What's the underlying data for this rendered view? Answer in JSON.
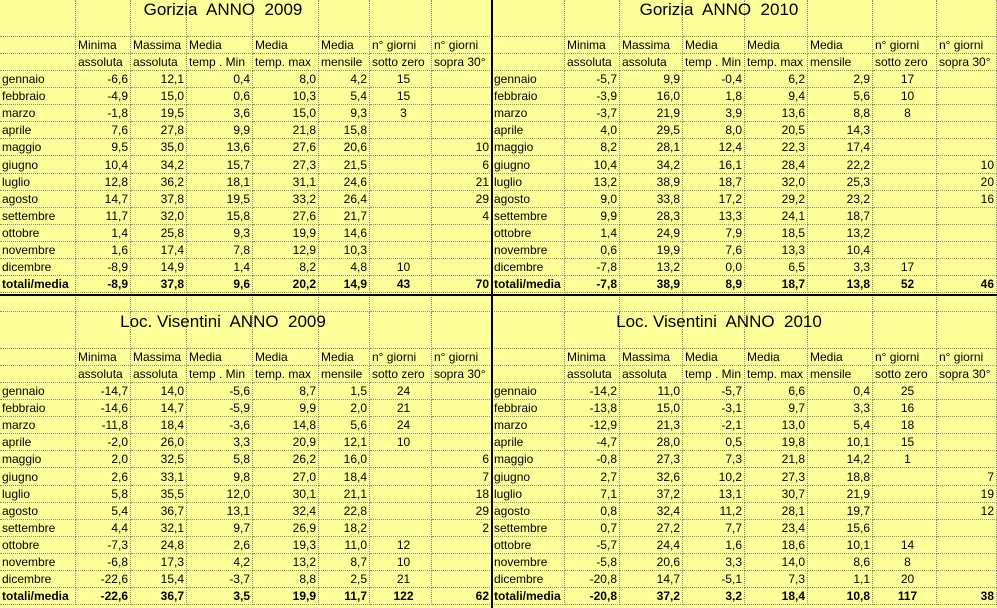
{
  "tables": [
    {
      "title": "Gorizia  ANNO  2009",
      "header_top": [
        "Minima",
        "Massima",
        "Media",
        "Media",
        "Media",
        "n° giorni",
        "n° giorni"
      ],
      "header_bottom": [
        "assoluta",
        "assoluta",
        "temp . Min",
        "temp. max",
        "mensile",
        "sotto zero",
        "sopra 30°"
      ],
      "rows": [
        [
          "gennaio",
          "-6,6",
          "12,1",
          "0,4",
          "8,0",
          "4,2",
          "15",
          null
        ],
        [
          "febbraio",
          "-4,9",
          "15,0",
          "0,6",
          "10,3",
          "5,4",
          "15",
          null
        ],
        [
          "marzo",
          "-1,8",
          "19,5",
          "3,6",
          "15,0",
          "9,3",
          "3",
          null
        ],
        [
          "aprile",
          "7,6",
          "27,8",
          "9,9",
          "21,8",
          "15,8",
          null,
          null
        ],
        [
          "maggio",
          "9,5",
          "35,0",
          "13,6",
          "27,6",
          "20,6",
          null,
          "10"
        ],
        [
          "giugno",
          "10,4",
          "34,2",
          "15,7",
          "27,3",
          "21,5",
          null,
          "6"
        ],
        [
          "luglio",
          "12,8",
          "36,2",
          "18,1",
          "31,1",
          "24,6",
          null,
          "21"
        ],
        [
          "agosto",
          "14,7",
          "37,8",
          "19,5",
          "33,2",
          "26,4",
          null,
          "29"
        ],
        [
          "settembre",
          "11,7",
          "32,0",
          "15,8",
          "27,6",
          "21,7",
          null,
          "4"
        ],
        [
          "ottobre",
          "1,4",
          "25,8",
          "9,3",
          "19,9",
          "14,6",
          null,
          null
        ],
        [
          "novembre",
          "1,6",
          "17,4",
          "7,8",
          "12,9",
          "10,3",
          null,
          null
        ],
        [
          "dicembre",
          "-8,9",
          "14,9",
          "1,4",
          "8,2",
          "4,8",
          "10",
          null
        ],
        [
          "totali/media",
          "-8,9",
          "37,8",
          "9,6",
          "20,2",
          "14,9",
          "43",
          "70"
        ]
      ]
    },
    {
      "title": "Gorizia  ANNO  2010",
      "header_top": [
        "Minima",
        "Massima",
        "Media",
        "Media",
        "Media",
        "n° giorni",
        "n° giorni"
      ],
      "header_bottom": [
        "assoluta",
        "assoluta",
        "temp . Min",
        "temp. max",
        "mensile",
        "sotto zero",
        "sopra 30°"
      ],
      "rows": [
        [
          "gennaio",
          "-5,7",
          "9,9",
          "-0,4",
          "6,2",
          "2,9",
          "17",
          null
        ],
        [
          "febbraio",
          "-3,9",
          "16,0",
          "1,8",
          "9,4",
          "5,6",
          "10",
          null
        ],
        [
          "marzo",
          "-3,7",
          "21,9",
          "3,9",
          "13,6",
          "8,8",
          "8",
          null
        ],
        [
          "aprile",
          "4,0",
          "29,5",
          "8,0",
          "20,5",
          "14,3",
          null,
          null
        ],
        [
          "maggio",
          "8,2",
          "28,1",
          "12,4",
          "22,3",
          "17,4",
          null,
          null
        ],
        [
          "giugno",
          "10,4",
          "34,2",
          "16,1",
          "28,4",
          "22,2",
          null,
          "10"
        ],
        [
          "luglio",
          "13,2",
          "38,9",
          "18,7",
          "32,0",
          "25,3",
          null,
          "20"
        ],
        [
          "agosto",
          "9,0",
          "33,8",
          "17,2",
          "29,2",
          "23,2",
          null,
          "16"
        ],
        [
          "settembre",
          "9,9",
          "28,3",
          "13,3",
          "24,1",
          "18,7",
          null,
          null
        ],
        [
          "ottobre",
          "1,4",
          "24,9",
          "7,9",
          "18,5",
          "13,2",
          null,
          null
        ],
        [
          "novembre",
          "0,6",
          "19,9",
          "7,6",
          "13,3",
          "10,4",
          null,
          null
        ],
        [
          "dicembre",
          "-7,8",
          "13,2",
          "0,0",
          "6,5",
          "3,3",
          "17",
          null
        ],
        [
          "totali/media",
          "-7,8",
          "38,9",
          "8,9",
          "18,7",
          "13,8",
          "52",
          "46"
        ]
      ]
    },
    {
      "title": "Loc. Visentini  ANNO  2009",
      "header_top": [
        "Minima",
        "Massima",
        "Media",
        "Media",
        "Media",
        "n° giorni",
        "n° giorni"
      ],
      "header_bottom": [
        "assoluta",
        "assoluta",
        "temp . Min",
        "temp. max",
        "mensile",
        "sotto zero",
        "sopra 30°"
      ],
      "rows": [
        [
          "gennaio",
          "-14,7",
          "14,0",
          "-5,6",
          "8,7",
          "1,5",
          "24",
          null
        ],
        [
          "febbraio",
          "-14,6",
          "14,7",
          "-5,9",
          "9,9",
          "2,0",
          "21",
          null
        ],
        [
          "marzo",
          "-11,8",
          "18,4",
          "-3,6",
          "14,8",
          "5,6",
          "24",
          null
        ],
        [
          "aprile",
          "-2,0",
          "26,0",
          "3,3",
          "20,9",
          "12,1",
          "10",
          null
        ],
        [
          "maggio",
          "2,0",
          "32,5",
          "5,8",
          "26,2",
          "16,0",
          null,
          "6"
        ],
        [
          "giugno",
          "2,6",
          "33,1",
          "9,8",
          "27,0",
          "18,4",
          null,
          "7"
        ],
        [
          "luglio",
          "5,8",
          "35,5",
          "12,0",
          "30,1",
          "21,1",
          null,
          "18"
        ],
        [
          "agosto",
          "5,4",
          "36,7",
          "13,1",
          "32,4",
          "22,8",
          null,
          "29"
        ],
        [
          "settembre",
          "4,4",
          "32,1",
          "9,7",
          "26,9",
          "18,2",
          null,
          "2"
        ],
        [
          "ottobre",
          "-7,3",
          "24,8",
          "2,6",
          "19,3",
          "11,0",
          "12",
          null
        ],
        [
          "novembre",
          "-6,8",
          "17,3",
          "4,2",
          "13,2",
          "8,7",
          "10",
          null
        ],
        [
          "dicembre",
          "-22,6",
          "15,4",
          "-3,7",
          "8,8",
          "2,5",
          "21",
          null
        ],
        [
          "totali/media",
          "-22,6",
          "36,7",
          "3,5",
          "19,9",
          "11,7",
          "122",
          "62"
        ]
      ]
    },
    {
      "title": "Loc. Visentini  ANNO  2010",
      "header_top": [
        "Minima",
        "Massima",
        "Media",
        "Media",
        "Media",
        "n° giorni",
        "n° giorni"
      ],
      "header_bottom": [
        "assoluta",
        "assoluta",
        "temp . Min",
        "temp. max",
        "mensile",
        "sotto zero",
        "sopra 30°"
      ],
      "rows": [
        [
          "gennaio",
          "-14,2",
          "11,0",
          "-5,7",
          "6,6",
          "0,4",
          "25",
          null
        ],
        [
          "febbraio",
          "-13,8",
          "15,0",
          "-3,1",
          "9,7",
          "3,3",
          "16",
          null
        ],
        [
          "marzo",
          "-12,9",
          "21,3",
          "-2,1",
          "13,0",
          "5,4",
          "18",
          null
        ],
        [
          "aprile",
          "-4,7",
          "28,0",
          "0,5",
          "19,8",
          "10,1",
          "15",
          null
        ],
        [
          "maggio",
          "-0,8",
          "27,3",
          "7,3",
          "21,8",
          "14,2",
          "1",
          null
        ],
        [
          "giugno",
          "2,7",
          "32,6",
          "10,2",
          "27,3",
          "18,8",
          null,
          "7"
        ],
        [
          "luglio",
          "7,1",
          "37,2",
          "13,1",
          "30,7",
          "21,9",
          null,
          "19"
        ],
        [
          "agosto",
          "0,8",
          "32,4",
          "11,2",
          "28,1",
          "19,7",
          null,
          "12"
        ],
        [
          "settembre",
          "0,7",
          "27,2",
          "7,7",
          "23,4",
          "15,6",
          null,
          null
        ],
        [
          "ottobre",
          "-5,7",
          "24,4",
          "1,6",
          "18,6",
          "10,1",
          "14",
          null
        ],
        [
          "novembre",
          "-5,8",
          "20,6",
          "3,3",
          "14,0",
          "8,6",
          "8",
          null
        ],
        [
          "dicembre",
          "-20,8",
          "14,7",
          "-5,1",
          "7,3",
          "1,1",
          "20",
          null
        ],
        [
          "totali/media",
          "-20,8",
          "37,2",
          "3,2",
          "18,4",
          "10,8",
          "117",
          "38"
        ]
      ]
    }
  ]
}
